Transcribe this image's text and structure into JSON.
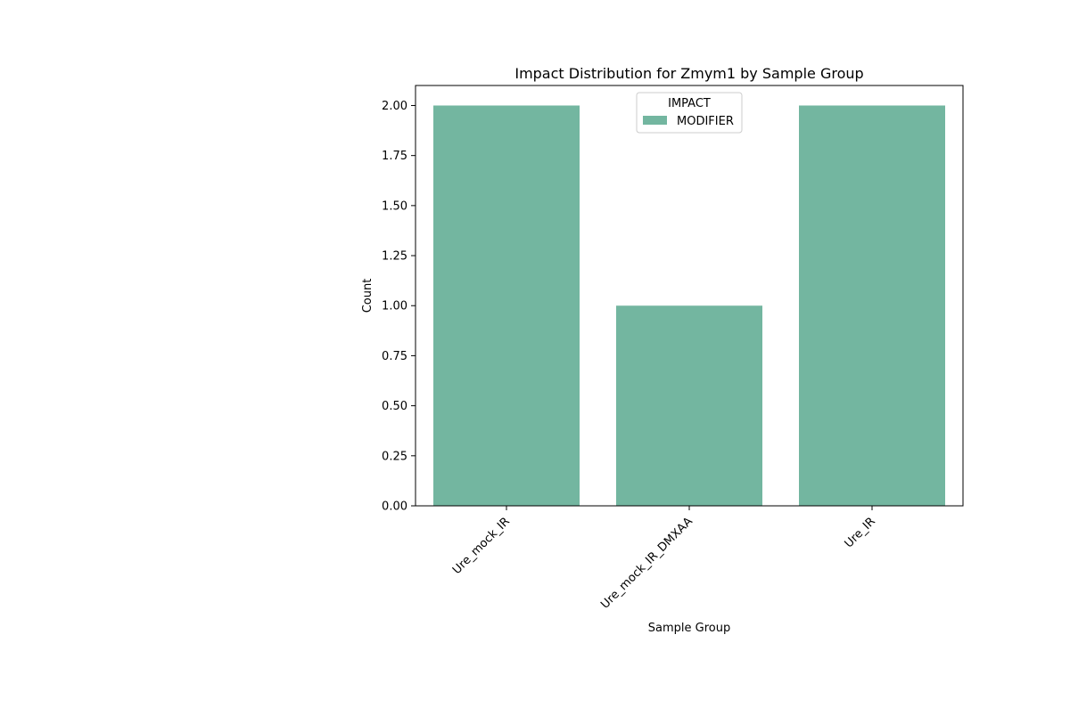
{
  "chart_data": {
    "type": "bar",
    "title": "Impact Distribution for Zmym1 by Sample Group",
    "xlabel": "Sample Group",
    "ylabel": "Count",
    "categories": [
      "Ure_mock_IR",
      "Ure_mock_IR_DMXAA",
      "Ure_IR"
    ],
    "series": [
      {
        "name": "MODIFIER",
        "values": [
          2,
          1,
          2
        ],
        "color": "#73b6a0"
      }
    ],
    "ylim": [
      0,
      2.1
    ],
    "yticks": [
      "0.00",
      "0.25",
      "0.50",
      "0.75",
      "1.00",
      "1.25",
      "1.50",
      "1.75",
      "2.00"
    ],
    "legend": {
      "title": "IMPACT",
      "placement": "upper center"
    },
    "grid": false
  }
}
